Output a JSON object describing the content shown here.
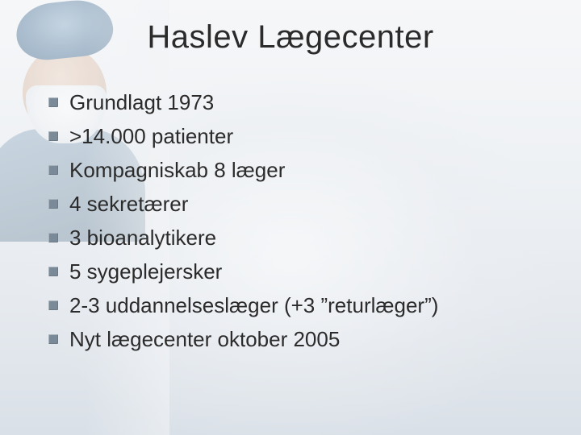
{
  "slide": {
    "title": "Haslev Lægecenter",
    "title_fontsize": 40,
    "title_color": "#2b2b2b",
    "body_fontsize": 26,
    "body_color": "#2b2b2b",
    "bullet_color": "#7a8a99",
    "background_gradient": [
      "#f6f7f9",
      "#eef1f4",
      "#e6eaef",
      "#d9e0e7"
    ],
    "items": [
      "Grundlagt 1973",
      ">14.000 patienter",
      "Kompagniskab 8 læger",
      "4 sekretærer",
      "3 bioanalytikere",
      "5 sygeplejersker",
      "2-3 uddannelseslæger (+3 ”returlæger”)",
      "Nyt lægecenter oktober 2005"
    ]
  }
}
